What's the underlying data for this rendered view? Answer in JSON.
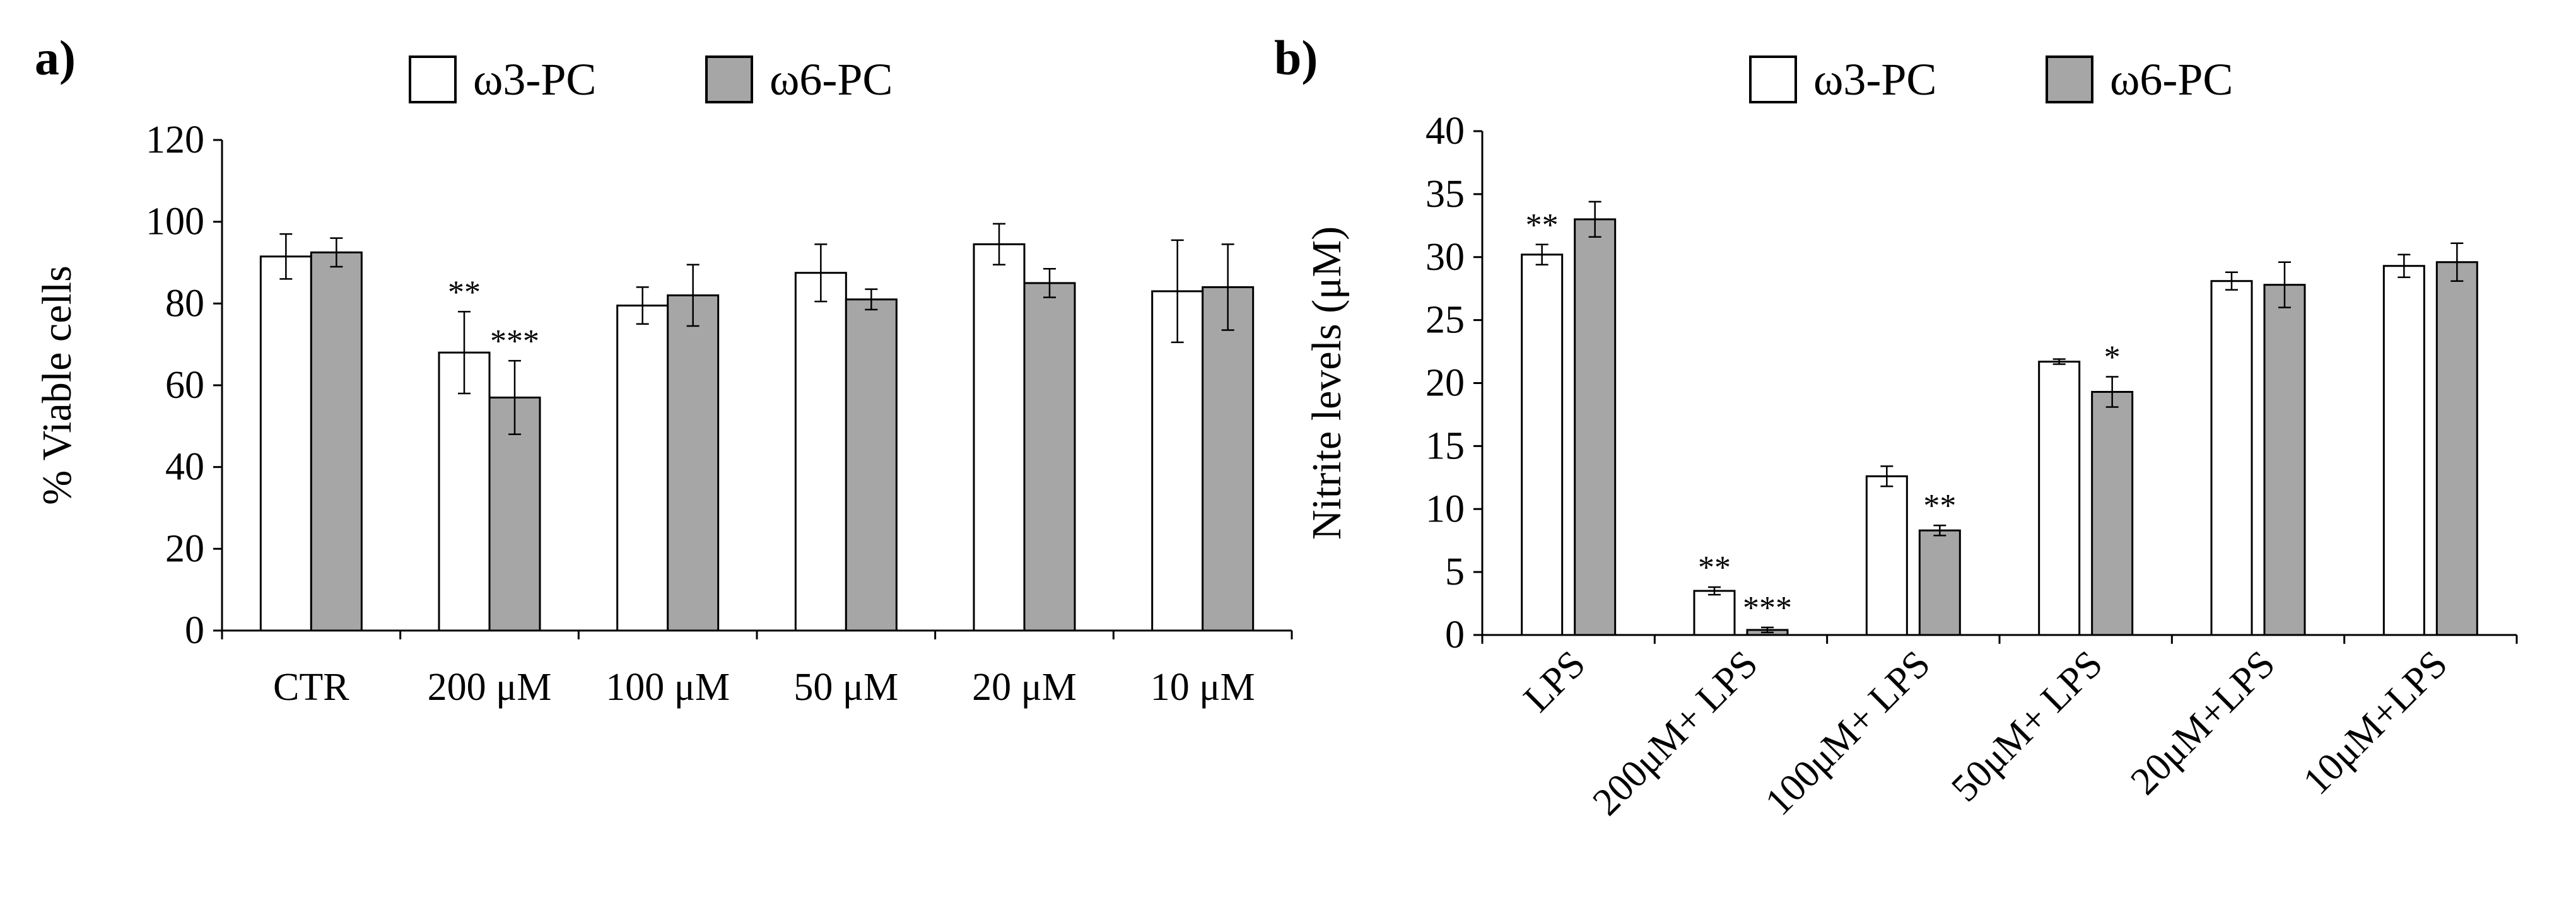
{
  "colors": {
    "omega3_fill": "#ffffff",
    "omega6_fill": "#a6a6a6",
    "stroke": "#000000"
  },
  "chart_data": [
    {
      "type": "bar",
      "panel_label": "a)",
      "ylabel": "% Viable cells",
      "xlabel": "",
      "ylim": [
        0,
        120
      ],
      "yticks": [
        0,
        20,
        40,
        60,
        80,
        100,
        120
      ],
      "grid": false,
      "legend": [
        "ω3-PC",
        "ω6-PC"
      ],
      "legend_position": "top-center",
      "categories": [
        "CTR",
        "200 μM",
        "100 μM",
        "50 μM",
        "20 μM",
        "10 μM"
      ],
      "series": [
        {
          "name": "ω3-PC",
          "values": [
            91.5,
            68,
            79.5,
            87.5,
            94.5,
            83
          ],
          "errors": [
            5.5,
            10,
            4.5,
            7,
            5,
            12.5
          ],
          "significance": [
            "",
            "**",
            "",
            "",
            "",
            ""
          ]
        },
        {
          "name": "ω6-PC",
          "values": [
            92.5,
            57,
            82,
            81,
            85,
            84
          ],
          "errors": [
            3.5,
            9,
            7.5,
            2.5,
            3.5,
            10.5
          ],
          "significance": [
            "",
            "***",
            "",
            "",
            "",
            ""
          ]
        }
      ]
    },
    {
      "type": "bar",
      "panel_label": "b)",
      "ylabel": "Nitrite levels (μM)",
      "xlabel": "",
      "ylim": [
        0,
        40
      ],
      "yticks": [
        0,
        5,
        10,
        15,
        20,
        25,
        30,
        35,
        40
      ],
      "grid": false,
      "legend": [
        "ω3-PC",
        "ω6-PC"
      ],
      "legend_position": "top-center",
      "categories": [
        "LPS",
        "200μM+ LPS",
        "100μM+ LPS",
        "50μM+ LPS",
        "20μM+LPS",
        "10μM+LPS"
      ],
      "series": [
        {
          "name": "ω3-PC",
          "values": [
            30.2,
            3.5,
            12.6,
            21.7,
            28.1,
            29.3
          ],
          "errors": [
            0.8,
            0.3,
            0.8,
            0.2,
            0.7,
            0.9
          ],
          "significance": [
            "**",
            "**",
            "",
            "",
            "",
            ""
          ]
        },
        {
          "name": "ω6-PC",
          "values": [
            33,
            0.4,
            8.3,
            19.3,
            27.8,
            29.6
          ],
          "errors": [
            1.4,
            0.2,
            0.4,
            1.2,
            1.8,
            1.5
          ],
          "significance": [
            "",
            "***",
            "**",
            "*",
            "",
            ""
          ]
        }
      ]
    }
  ]
}
